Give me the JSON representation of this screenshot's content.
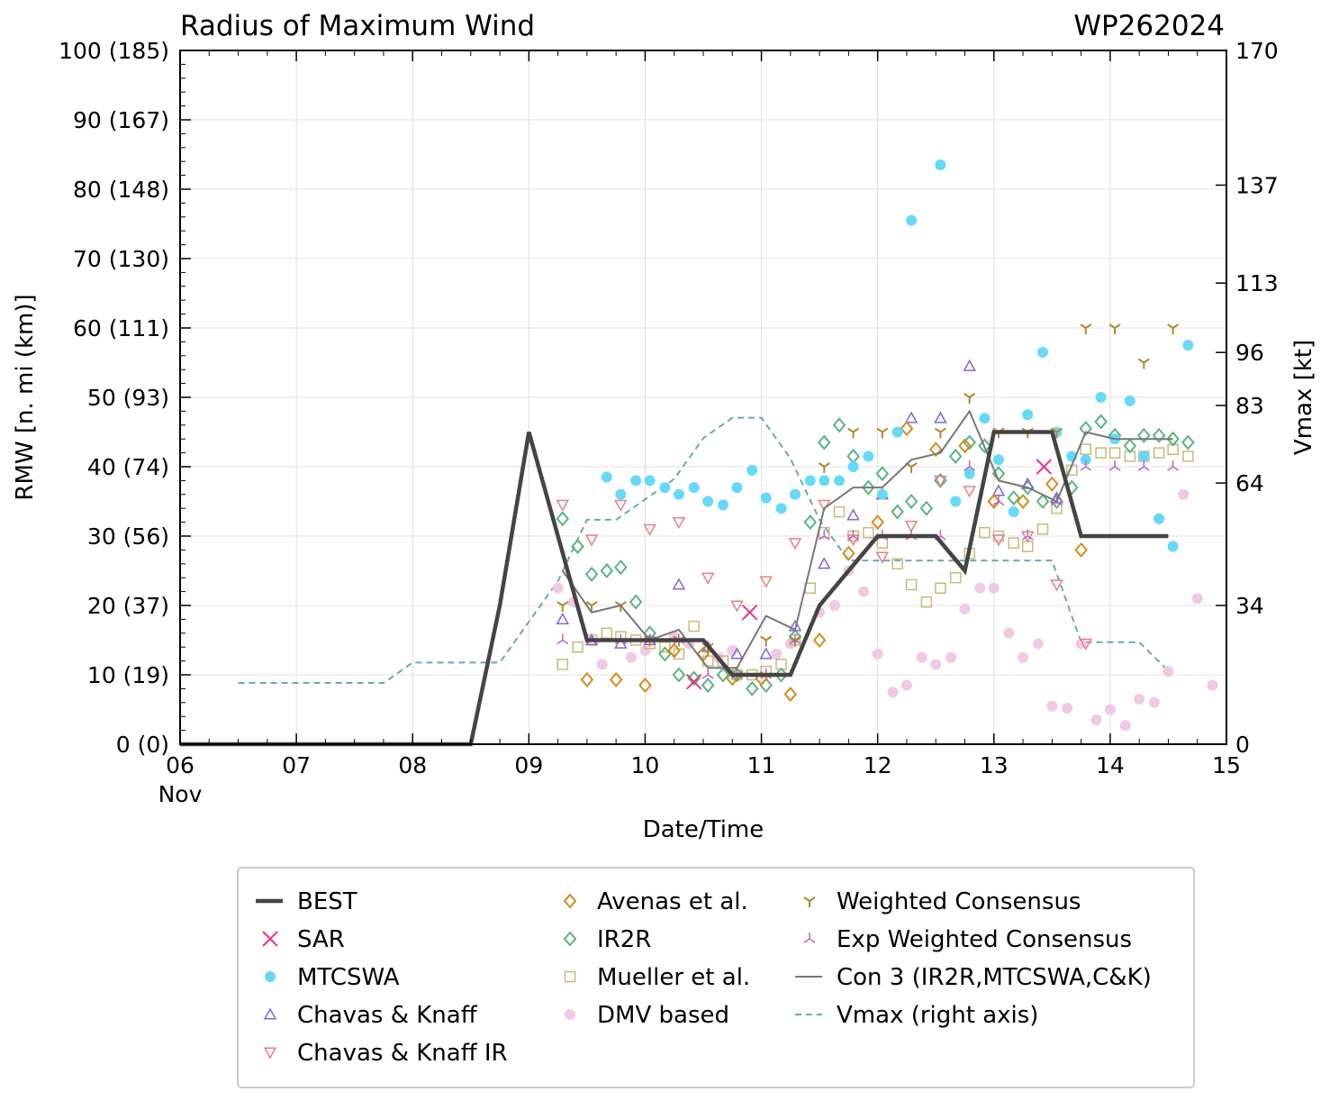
{
  "chart_data": {
    "type": "scatter",
    "title": "Radius of Maximum Wind",
    "storm_id": "WP262024",
    "xlabel": "Date/Time",
    "ylabel": "RMW [n. mi (km)]",
    "y2label": "Vmax [kt]",
    "xlim": [
      6,
      15
    ],
    "ylim": [
      0,
      100
    ],
    "y2lim": [
      0,
      170
    ],
    "x_ticks": [
      {
        "value": 6,
        "label": "06",
        "sublabel": "Nov"
      },
      {
        "value": 7,
        "label": "07"
      },
      {
        "value": 8,
        "label": "08"
      },
      {
        "value": 9,
        "label": "09"
      },
      {
        "value": 10,
        "label": "10"
      },
      {
        "value": 11,
        "label": "11"
      },
      {
        "value": 12,
        "label": "12"
      },
      {
        "value": 13,
        "label": "13"
      },
      {
        "value": 14,
        "label": "14"
      },
      {
        "value": 15,
        "label": "15"
      }
    ],
    "y_ticks": [
      {
        "value": 0,
        "label": "0 (0)"
      },
      {
        "value": 10,
        "label": "10 (19)"
      },
      {
        "value": 20,
        "label": "20 (37)"
      },
      {
        "value": 30,
        "label": "30 (56)"
      },
      {
        "value": 40,
        "label": "40 (74)"
      },
      {
        "value": 50,
        "label": "50 (93)"
      },
      {
        "value": 60,
        "label": "60 (111)"
      },
      {
        "value": 70,
        "label": "70 (130)"
      },
      {
        "value": 80,
        "label": "80 (148)"
      },
      {
        "value": 90,
        "label": "90 (167)"
      },
      {
        "value": 100,
        "label": "100 (185)"
      }
    ],
    "y2_ticks": [
      {
        "value": 0,
        "label": "0"
      },
      {
        "value": 34,
        "label": "34"
      },
      {
        "value": 64,
        "label": "64"
      },
      {
        "value": 83,
        "label": "83"
      },
      {
        "value": 96,
        "label": "96"
      },
      {
        "value": 113,
        "label": "113"
      },
      {
        "value": 137,
        "label": "137"
      },
      {
        "value": 170,
        "label": "170"
      }
    ],
    "series": [
      {
        "name": "BEST",
        "kind": "line",
        "color": "#444444",
        "x": [
          6.0,
          8.5,
          8.75,
          9.0,
          9.25,
          9.5,
          9.75,
          10.0,
          10.25,
          10.5,
          10.75,
          11.0,
          11.25,
          11.5,
          11.75,
          12.0,
          12.25,
          12.5,
          12.75,
          13.0,
          13.25,
          13.5,
          13.75,
          14.0,
          14.25,
          14.5
        ],
        "y": [
          0,
          0,
          20,
          45,
          30,
          15,
          15,
          15,
          15,
          15,
          10,
          10,
          10,
          20,
          25,
          30,
          30,
          30,
          25,
          45,
          45,
          45,
          30,
          30,
          30,
          30
        ]
      },
      {
        "name": "SAR",
        "kind": "x",
        "color": "#e8338f",
        "x": [
          10.42,
          10.9,
          13.43
        ],
        "y": [
          9,
          19,
          40
        ]
      },
      {
        "name": "MTCSWA",
        "kind": "dot",
        "color": "#66d9f9",
        "x": [
          9.67,
          9.79,
          9.92,
          10.04,
          10.17,
          10.29,
          10.42,
          10.54,
          10.67,
          10.79,
          10.92,
          11.04,
          11.17,
          11.29,
          11.42,
          11.54,
          11.67,
          11.79,
          11.92,
          12.04,
          12.17,
          12.29,
          12.54,
          12.67,
          12.79,
          12.92,
          13.04,
          13.17,
          13.29,
          13.42,
          13.54,
          13.67,
          13.79,
          13.92,
          14.04,
          14.17,
          14.29,
          14.42,
          14.54,
          14.67
        ],
        "y": [
          38.5,
          36,
          38,
          38,
          37,
          36,
          37,
          35,
          34.5,
          37,
          39.5,
          35.5,
          34,
          36,
          38,
          38,
          38,
          40,
          41.5,
          36,
          45,
          75.5,
          83.5,
          35,
          39,
          47,
          41,
          33.5,
          47.5,
          56.5,
          45,
          41.5,
          41,
          50,
          44,
          49.5,
          41.5,
          32.5,
          28.5,
          57.5
        ]
      },
      {
        "name": "Chavas & Knaff",
        "kind": "tri-up",
        "color": "#8067dd",
        "x": [
          9.29,
          9.54,
          9.79,
          10.04,
          10.29,
          10.54,
          10.79,
          11.04,
          11.29,
          11.54,
          11.79,
          12.04,
          12.29,
          12.54,
          12.79,
          13.04,
          13.29,
          13.54
        ],
        "y": [
          18,
          15,
          14.5,
          15,
          23,
          14,
          13,
          13,
          17,
          26,
          33,
          36,
          47,
          47,
          54.5,
          36.5,
          37.5,
          35.5
        ]
      },
      {
        "name": "Chavas & Knaff IR",
        "kind": "tri-down",
        "color": "#ea7f7f",
        "x": [
          9.29,
          9.54,
          9.79,
          10.04,
          10.29,
          10.54,
          10.79,
          11.04,
          11.29,
          11.54,
          11.79,
          12.04,
          12.29,
          12.54,
          12.79,
          13.04,
          13.29,
          13.54,
          13.79
        ],
        "y": [
          34.5,
          29.5,
          34.5,
          31,
          32,
          24,
          20,
          23.5,
          29,
          34.5,
          29.5,
          27,
          31.5,
          38,
          36.5,
          29.5,
          30,
          23,
          14.5
        ]
      },
      {
        "name": "Avenas et al.",
        "kind": "diamond",
        "color": "#d68b1a",
        "x": [
          9.5,
          9.75,
          10.0,
          10.25,
          10.5,
          10.75,
          11.0,
          11.25,
          11.5,
          11.75,
          12.0,
          12.25,
          12.5,
          12.75,
          13.0,
          13.25,
          13.5,
          13.75
        ],
        "y": [
          9.3,
          9.3,
          8.5,
          13.5,
          13,
          9.5,
          9.5,
          7.2,
          15,
          27.5,
          32,
          45.5,
          42.5,
          43,
          35,
          35,
          37.5,
          28
        ]
      },
      {
        "name": "IR2R",
        "kind": "diamond",
        "color": "#5ab582",
        "x": [
          9.29,
          9.42,
          9.54,
          9.67,
          9.79,
          9.92,
          10.04,
          10.17,
          10.29,
          10.42,
          10.54,
          10.67,
          10.79,
          10.92,
          11.04,
          11.17,
          11.29,
          11.42,
          11.54,
          11.67,
          11.79,
          11.92,
          12.04,
          12.17,
          12.29,
          12.42,
          12.54,
          12.67,
          12.79,
          12.92,
          13.04,
          13.17,
          13.29,
          13.42,
          13.54,
          13.67,
          13.79,
          13.92,
          14.04,
          14.17,
          14.29,
          14.42,
          14.54,
          14.67
        ],
        "y": [
          32.5,
          28.5,
          24.5,
          25,
          25.5,
          20.5,
          16,
          13,
          10,
          9.5,
          8.5,
          10,
          10,
          8,
          8.5,
          10,
          15.5,
          32,
          43.5,
          46,
          41.5,
          37,
          39,
          33.5,
          35,
          34,
          38,
          41.5,
          43.5,
          43,
          39,
          35.5,
          37,
          35,
          35,
          37,
          45.5,
          46.5,
          44.5,
          43,
          44.5,
          44.5,
          44,
          43.5
        ]
      },
      {
        "name": "Mueller et al.",
        "kind": "square",
        "color": "#c9b97a",
        "x": [
          9.29,
          9.42,
          9.54,
          9.67,
          9.79,
          9.92,
          10.04,
          10.17,
          10.29,
          10.42,
          10.54,
          10.67,
          10.79,
          10.92,
          11.04,
          11.17,
          11.29,
          11.42,
          11.54,
          11.67,
          11.79,
          11.92,
          12.04,
          12.17,
          12.29,
          12.42,
          12.54,
          12.67,
          12.79,
          12.92,
          13.04,
          13.17,
          13.29,
          13.42,
          13.54,
          13.67,
          13.79,
          13.92,
          14.04,
          14.17,
          14.29,
          14.42,
          14.54,
          14.67
        ],
        "y": [
          11.5,
          14,
          15,
          16,
          15.5,
          15,
          14.5,
          14,
          13,
          17,
          12,
          12,
          10,
          10,
          10.5,
          11.5,
          15,
          22.5,
          30.5,
          33.5,
          30,
          30.5,
          29,
          26,
          23,
          20.5,
          22.5,
          24,
          27.5,
          30.5,
          30,
          29,
          28.5,
          31,
          34,
          39.5,
          42.5,
          42,
          42,
          41.5,
          41.5,
          42,
          42.5,
          41.5
        ]
      },
      {
        "name": "DMV based",
        "kind": "dot",
        "color": "#f0c9e4",
        "x": [
          9.25,
          9.38,
          9.63,
          9.88,
          10.0,
          10.25,
          10.38,
          10.63,
          10.75,
          11.13,
          11.25,
          11.5,
          11.63,
          11.75,
          11.88,
          12.0,
          12.13,
          12.25,
          12.38,
          12.5,
          12.63,
          12.75,
          12.88,
          13.0,
          13.13,
          13.25,
          13.38,
          13.5,
          13.63,
          13.75,
          13.88,
          14.0,
          14.13,
          14.25,
          14.38,
          14.5,
          14.63,
          14.75,
          14.88
        ],
        "y": [
          22.5,
          20.5,
          11.5,
          12.5,
          13.5,
          15.5,
          14.5,
          12.5,
          13.5,
          13,
          14.5,
          19,
          20,
          25,
          22,
          13,
          7.5,
          8.5,
          12.5,
          11.5,
          12.5,
          19.5,
          22.5,
          22.5,
          16,
          12.5,
          14.5,
          5.5,
          5.2,
          14.5,
          3.5,
          5,
          2.7,
          6.5,
          6,
          10.5,
          36,
          21,
          8.5
        ]
      },
      {
        "name": "Weighted Consensus",
        "kind": "y-marker",
        "color": "#b08a2e",
        "x": [
          9.29,
          9.54,
          9.79,
          10.04,
          10.29,
          10.54,
          10.79,
          11.04,
          11.29,
          11.54,
          11.79,
          12.04,
          12.29,
          12.54,
          12.79,
          13.04,
          13.29,
          13.54,
          13.79,
          14.04,
          14.29,
          14.54
        ],
        "y": [
          20,
          20,
          20,
          15,
          15,
          14,
          10,
          15,
          15,
          40,
          45,
          45,
          40,
          45,
          50,
          45,
          45,
          45,
          60,
          60,
          55,
          60
        ]
      },
      {
        "name": "Exp Weighted Consensus",
        "kind": "y-inv-marker",
        "color": "#c65fc9",
        "x": [
          9.29,
          9.54,
          9.79,
          10.04,
          10.29,
          10.54,
          10.79,
          11.04,
          11.29,
          11.54,
          11.79,
          12.04,
          12.29,
          12.54,
          12.79,
          13.04,
          13.29,
          13.54,
          13.79,
          14.04,
          14.29,
          14.54
        ],
        "y": [
          15,
          15,
          15,
          15,
          15,
          10,
          10,
          10,
          15,
          30,
          30,
          30,
          30,
          30,
          40,
          35,
          30,
          35,
          40,
          40,
          40,
          40
        ]
      },
      {
        "name": "Con 3 (IR2R,MTCSWA,C&K)",
        "kind": "line",
        "color": "#777777",
        "x": [
          9.29,
          9.54,
          9.79,
          10.04,
          10.29,
          10.54,
          10.79,
          11.04,
          11.29,
          11.54,
          11.79,
          12.04,
          12.29,
          12.54,
          12.79,
          13.04,
          13.29,
          13.54,
          13.79,
          14.04,
          14.29,
          14.54
        ],
        "y": [
          25,
          19,
          20,
          15,
          16.5,
          11,
          11,
          18.5,
          16.5,
          34,
          37,
          37,
          41,
          42,
          48,
          38,
          37,
          35,
          45,
          44,
          44,
          44
        ]
      },
      {
        "name": "Vmax (right axis)",
        "kind": "dashed",
        "color": "#6aa8b3",
        "axis": "right",
        "x": [
          6.5,
          7.0,
          7.5,
          7.75,
          8.0,
          8.25,
          8.5,
          8.75,
          9.0,
          9.25,
          9.5,
          9.75,
          10.0,
          10.25,
          10.5,
          10.75,
          11.0,
          11.25,
          11.5,
          11.75,
          12.0,
          12.25,
          12.5,
          12.75,
          13.0,
          13.25,
          13.5,
          13.75,
          14.0,
          14.25,
          14.5
        ],
        "y": [
          15,
          15,
          15,
          15,
          20,
          20,
          20,
          20,
          30,
          40,
          55,
          55,
          60,
          65,
          75,
          80,
          80,
          70,
          55,
          45,
          45,
          45,
          45,
          45,
          45,
          45,
          45,
          25,
          25,
          25,
          18
        ]
      }
    ],
    "legend": {
      "placement": "below",
      "columns": [
        [
          "BEST",
          "SAR",
          "MTCSWA",
          "Chavas & Knaff",
          "Chavas & Knaff IR"
        ],
        [
          "Avenas et al.",
          "IR2R",
          "Mueller et al.",
          "DMV based"
        ],
        [
          "Weighted Consensus",
          "Exp Weighted Consensus",
          "Con 3 (IR2R,MTCSWA,C&K)",
          "Vmax (right axis)"
        ]
      ]
    },
    "grid": true
  }
}
